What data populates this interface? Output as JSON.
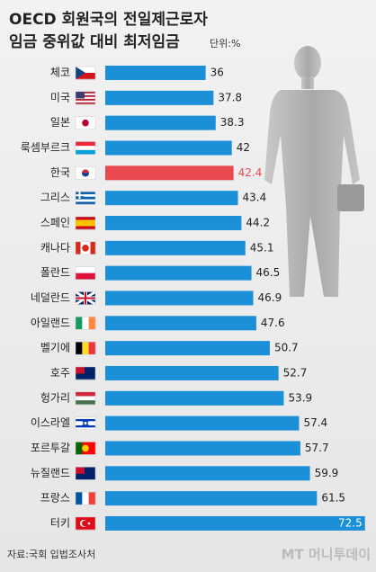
{
  "chart_data": {
    "type": "barh",
    "title": [
      "OECD 회원국의 전일제근로자",
      "임금 중위값 대비 최저임금"
    ],
    "unit": "단위:%",
    "source": "자료:국회 입법조사처",
    "watermark": "MT 머니투데이",
    "categories": [
      "체코",
      "미국",
      "일본",
      "룩셈부르크",
      "한국",
      "그리스",
      "스페인",
      "캐나다",
      "폴란드",
      "네덜란드",
      "아일랜드",
      "벨기에",
      "호주",
      "헝가리",
      "이스라엘",
      "포르투갈",
      "뉴질랜드",
      "프랑스",
      "터키"
    ],
    "values": [
      36,
      37.8,
      38.3,
      42,
      42.4,
      43.4,
      44.2,
      45.1,
      46.5,
      46.9,
      47.6,
      50.7,
      52.7,
      53.9,
      57.4,
      57.7,
      59.9,
      61.5,
      72.5
    ],
    "colors": [
      "#1b8fd8",
      "#1b8fd8",
      "#1b8fd8",
      "#1b8fd8",
      "#e84a4f",
      "#1b8fd8",
      "#1b8fd8",
      "#1b8fd8",
      "#1b8fd8",
      "#1b8fd8",
      "#1b8fd8",
      "#1b8fd8",
      "#1b8fd8",
      "#1b8fd8",
      "#1b8fd8",
      "#1b8fd8",
      "#1b8fd8",
      "#1b8fd8",
      "#1b8fd8"
    ],
    "xlim": [
      13,
      74
    ]
  }
}
